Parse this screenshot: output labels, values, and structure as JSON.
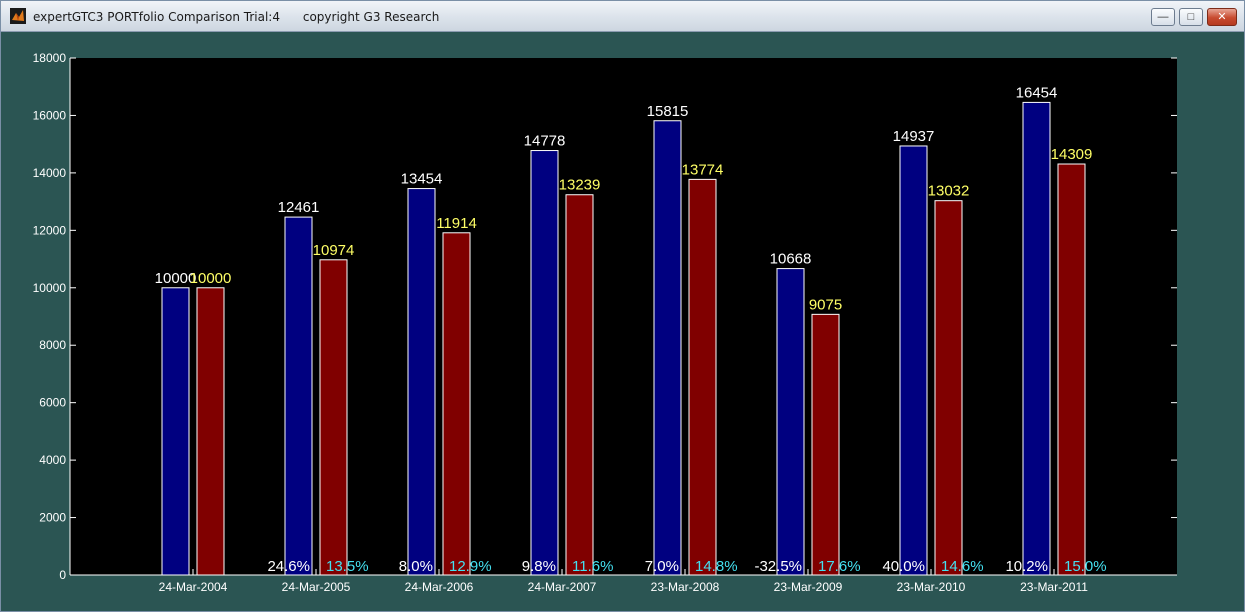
{
  "window": {
    "title": "expertGTC3 PORTfolio Comparison Trial:4      copyright G3 Research",
    "minimize_icon": "minimize-icon",
    "maximize_icon": "maximize-icon",
    "close_icon": "close-icon"
  },
  "colors": {
    "figure_bg": "#2b5553",
    "axes_bg": "#000000",
    "series1": "#000080",
    "series2": "#800000",
    "label1": "#ffffff",
    "label2": "#ffff66",
    "pct1": "#ffffff",
    "pct2": "#44e0f0"
  },
  "chart_data": {
    "type": "bar",
    "categories": [
      "24-Mar-2004",
      "24-Mar-2005",
      "24-Mar-2006",
      "24-Mar-2007",
      "23-Mar-2008",
      "23-Mar-2009",
      "23-Mar-2010",
      "23-Mar-2011"
    ],
    "series": [
      {
        "values": [
          10000,
          12461,
          13454,
          14778,
          15815,
          10668,
          14937,
          16454
        ]
      },
      {
        "values": [
          10000,
          10974,
          11914,
          13239,
          13774,
          9075,
          13032,
          14309
        ]
      }
    ],
    "value_labels": [
      [
        "10000",
        "12461",
        "13454",
        "14778",
        "15815",
        "10668",
        "14937",
        "16454"
      ],
      [
        "10000",
        "10974",
        "11914",
        "13239",
        "13774",
        "9075",
        "13032",
        "14309"
      ]
    ],
    "percent_labels": [
      [
        "",
        "24.6%",
        "8.0%",
        "9.8%",
        "7.0%",
        "-32.5%",
        "40.0%",
        "10.2%"
      ],
      [
        "",
        "13.5%",
        "12.9%",
        "11.6%",
        "14.8%",
        "17.6%",
        "14.6%",
        "15.0%"
      ]
    ],
    "ylim": [
      0,
      18000
    ],
    "yticks": [
      0,
      2000,
      4000,
      6000,
      8000,
      10000,
      12000,
      14000,
      16000,
      18000
    ],
    "ytick_labels": [
      "0",
      "2000",
      "4000",
      "6000",
      "8000",
      "10000",
      "12000",
      "14000",
      "16000",
      "18000"
    ],
    "title": "",
    "xlabel": "",
    "ylabel": "",
    "grid": false,
    "legend": "none"
  }
}
